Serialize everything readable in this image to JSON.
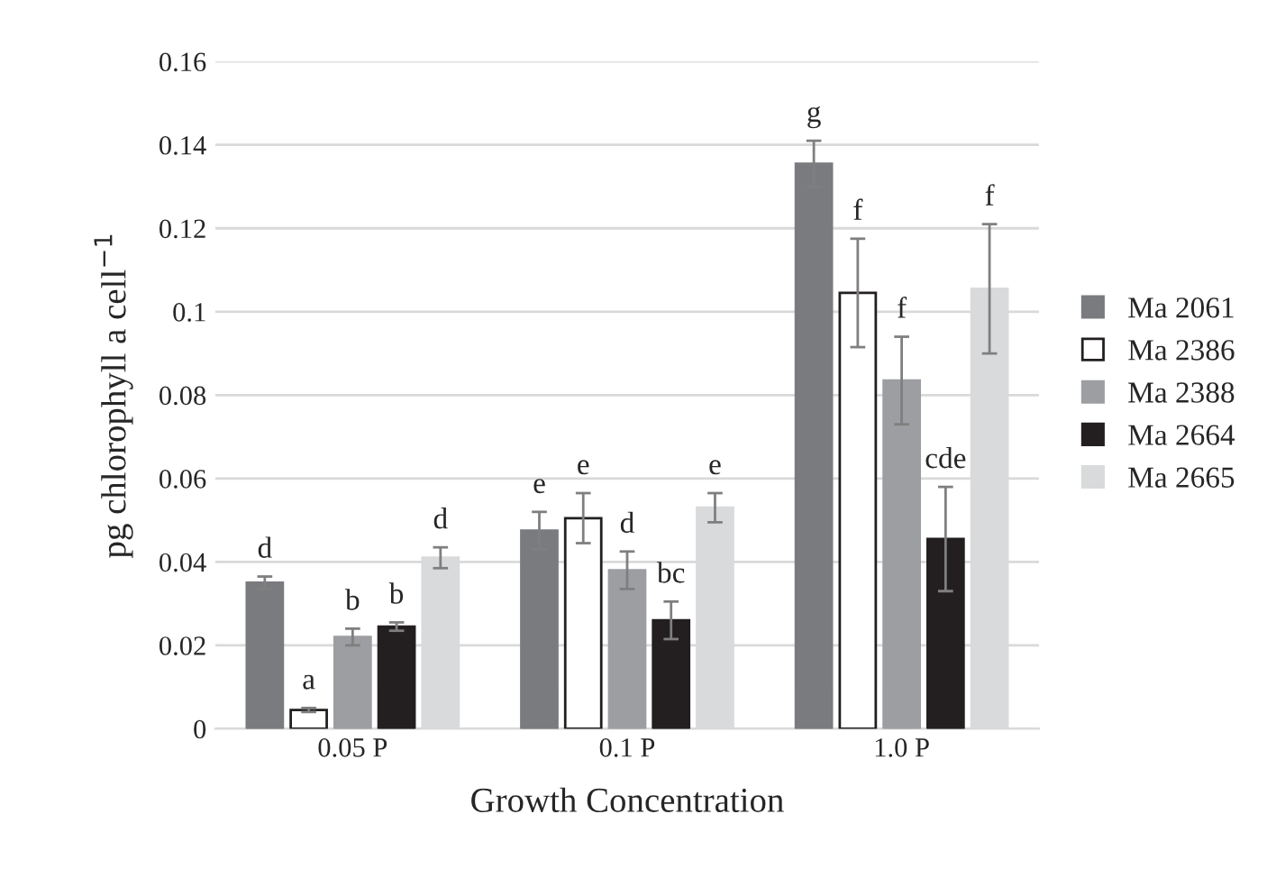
{
  "chart_data": {
    "type": "bar",
    "xlabel": "Growth Concentration",
    "ylabel": "pg chlorophyll a cell$^{−1}$",
    "categories": [
      "0.05 P",
      "0.1 P",
      "1.0 P"
    ],
    "series": [
      {
        "name": "Ma 2061",
        "color": "#7a7b7f",
        "values": [
          0.035,
          0.0475,
          0.1355
        ],
        "errors": [
          0.0015,
          0.0045,
          0.0055
        ]
      },
      {
        "name": "Ma 2386",
        "color": "#ffffff",
        "values": [
          0.0045,
          0.0505,
          0.1045
        ],
        "errors": [
          0.0005,
          0.006,
          0.013
        ]
      },
      {
        "name": "Ma 2388",
        "color": "#9d9ea2",
        "values": [
          0.022,
          0.038,
          0.0835
        ],
        "errors": [
          0.002,
          0.0045,
          0.0105
        ]
      },
      {
        "name": "Ma 2664",
        "color": "#231f20",
        "values": [
          0.0245,
          0.026,
          0.0455
        ],
        "errors": [
          0.001,
          0.0045,
          0.0125
        ]
      },
      {
        "name": "Ma 2665",
        "color": "#d9dadc",
        "values": [
          0.041,
          0.053,
          0.1055
        ],
        "errors": [
          0.0025,
          0.0035,
          0.0155
        ]
      }
    ],
    "annotations": [
      "d",
      "e",
      "g",
      "a",
      "e",
      "f",
      "b",
      "d",
      "f",
      "b",
      "bc",
      "cde",
      "d",
      "e",
      "f"
    ],
    "ylim": [
      0,
      0.16
    ],
    "yticks": [
      0,
      {
        "value": 0.02,
        "label": "0.02"
      },
      {
        "value": 0.04,
        "label": "0.04"
      },
      {
        "value": 0.06,
        "label": "0.06"
      },
      {
        "value": 0.08,
        "label": "0.08"
      },
      0.1,
      {
        "value": 0.12,
        "label": "0.12"
      },
      {
        "value": 0.14,
        "label": "0.14"
      },
      {
        "value": 0.16,
        "label": "0.16"
      }
    ],
    "grid": "y",
    "legend": "right"
  }
}
